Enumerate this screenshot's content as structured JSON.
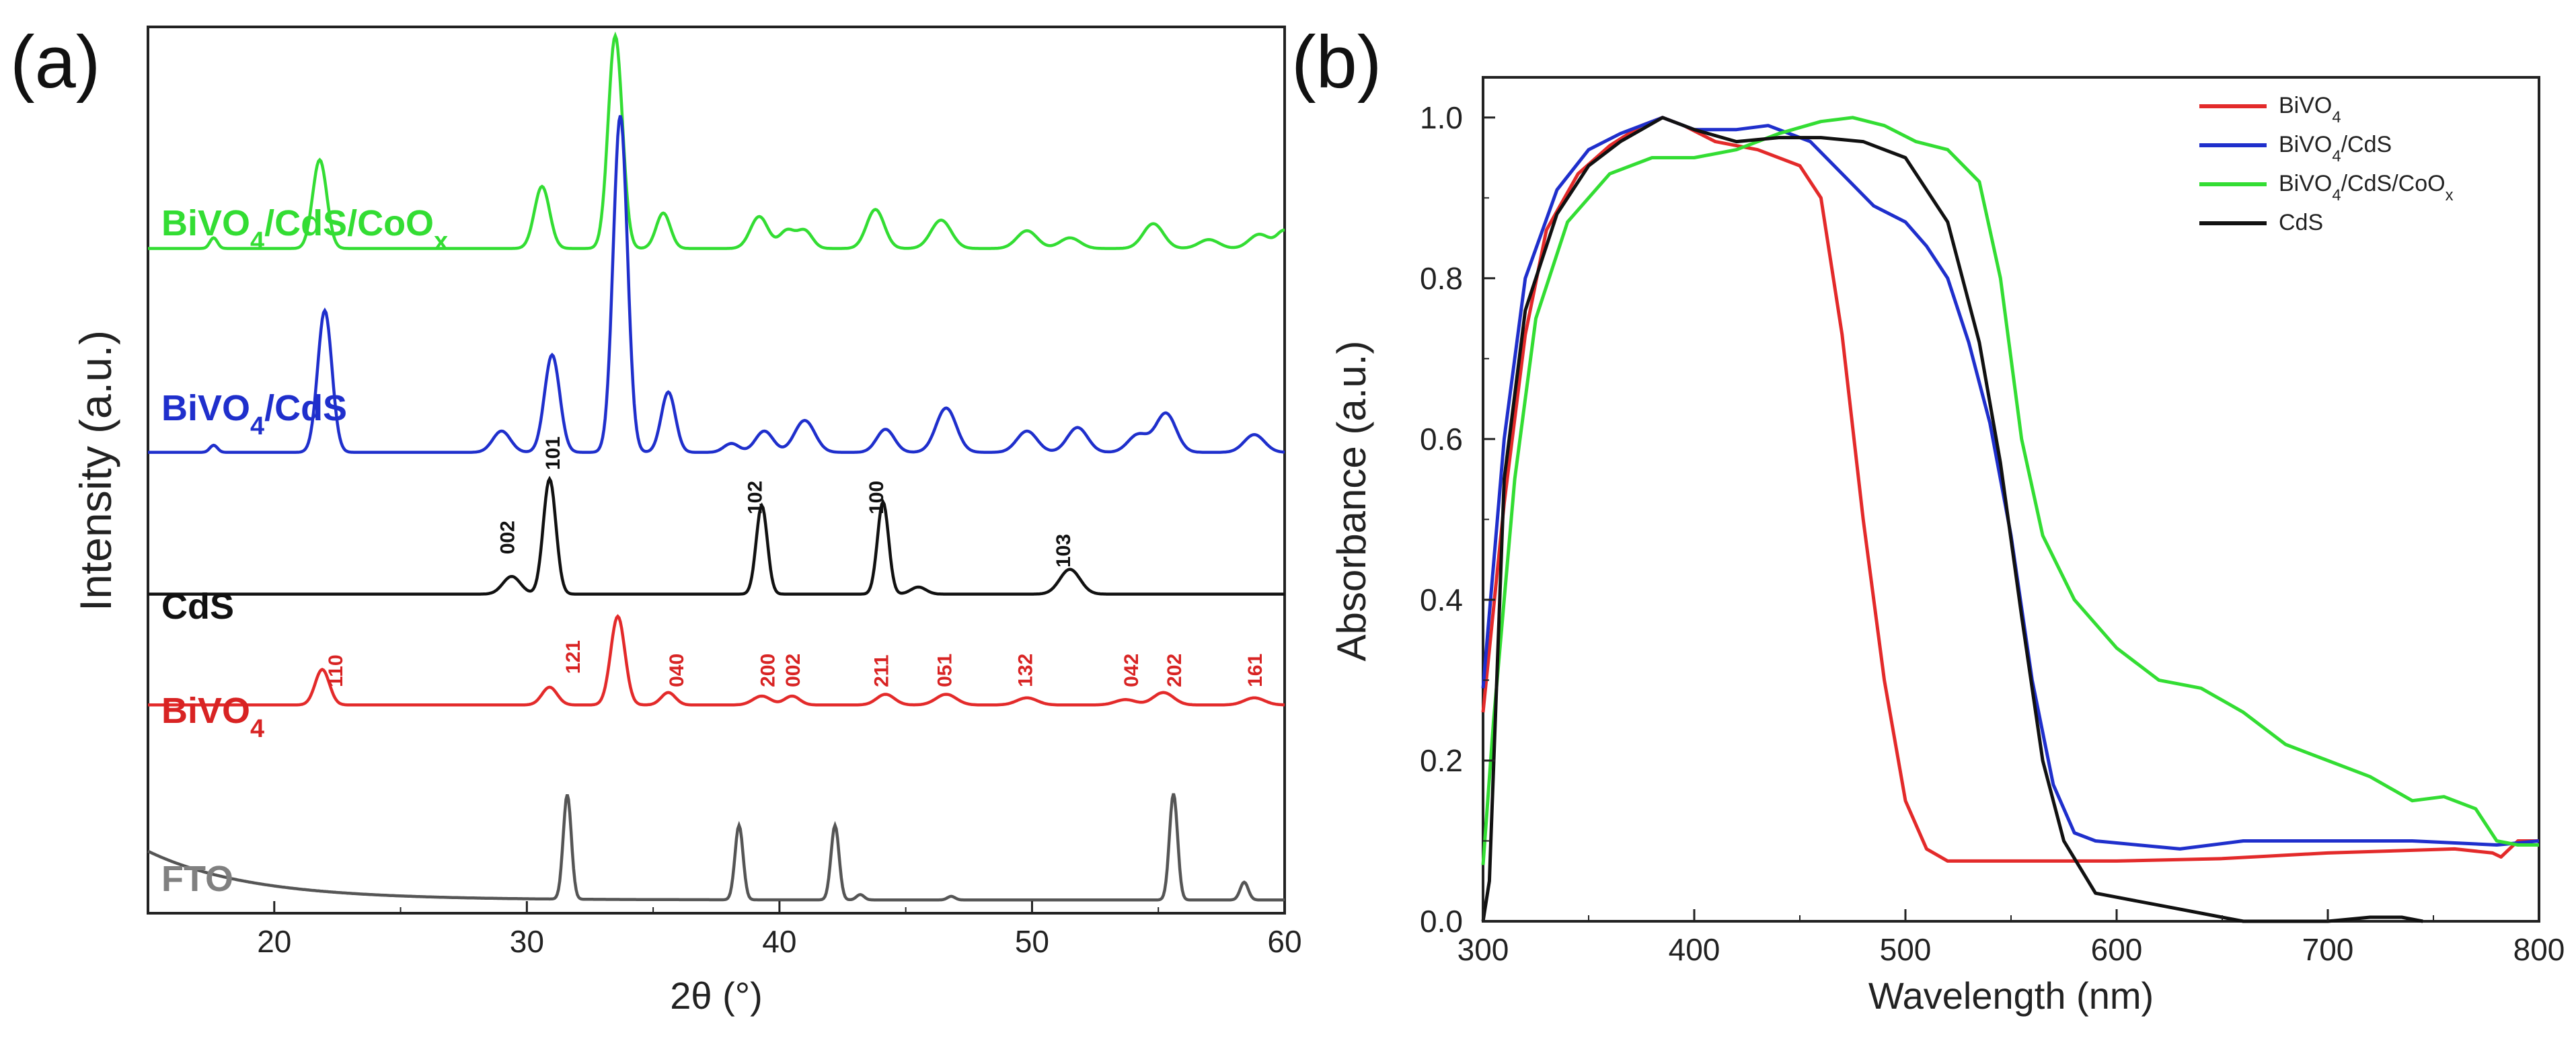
{
  "panel_a": {
    "label": "(a)",
    "label_text": "(a)",
    "xlabel": "2θ (°)",
    "ylabel": "Intensity (a.u.)"
  },
  "panel_b": {
    "label": "(b)",
    "xlabel": "Wavelength (nm)",
    "ylabel": "Absorbance (a.u.)"
  },
  "colors": {
    "green": "#33dd33",
    "blue": "#1f2fcc",
    "black": "#111111",
    "red": "#e32a2a",
    "gray": "#555555",
    "red_label": "#d82323"
  },
  "chart_data": [
    {
      "type": "line",
      "title": "(a)",
      "xlabel": "2θ (°)",
      "ylabel": "Intensity (a.u.)",
      "xlim": [
        15,
        60
      ],
      "xticks": [
        20,
        30,
        40,
        50,
        60
      ],
      "stacked": true,
      "series": [
        {
          "name": "BiVO4/CdS/CoOx",
          "label_main": "BiVO",
          "label_sub": "4",
          "label_mid": "/CdS/CoO",
          "label_sub2": "x",
          "color": "#33dd33",
          "baseline_level": 0.75,
          "peaks": [
            [
              17.6,
              0.06,
              0.15
            ],
            [
              21.8,
              0.5,
              0.28
            ],
            [
              30.6,
              0.35,
              0.3
            ],
            [
              33.5,
              1.2,
              0.28
            ],
            [
              35.4,
              0.2,
              0.28
            ],
            [
              39.2,
              0.18,
              0.35
            ],
            [
              40.3,
              0.1,
              0.3
            ],
            [
              41.0,
              0.1,
              0.3
            ],
            [
              43.8,
              0.22,
              0.35
            ],
            [
              46.4,
              0.16,
              0.4
            ],
            [
              49.8,
              0.1,
              0.4
            ],
            [
              51.5,
              0.06,
              0.4
            ],
            [
              54.8,
              0.14,
              0.4
            ],
            [
              57.0,
              0.05,
              0.4
            ],
            [
              59.0,
              0.08,
              0.4
            ],
            [
              60.0,
              0.1,
              0.3
            ]
          ]
        },
        {
          "name": "BiVO4/CdS",
          "label_main": "BiVO",
          "label_sub": "4",
          "label_mid": "/CdS",
          "label_sub2": "",
          "color": "#1f2fcc",
          "baseline_level": 0.52,
          "peaks": [
            [
              17.6,
              0.04,
              0.15
            ],
            [
              22.0,
              0.8,
              0.28
            ],
            [
              29.0,
              0.12,
              0.35
            ],
            [
              31.0,
              0.55,
              0.3
            ],
            [
              33.7,
              1.9,
              0.28
            ],
            [
              35.6,
              0.34,
              0.28
            ],
            [
              38.1,
              0.05,
              0.3
            ],
            [
              39.4,
              0.12,
              0.35
            ],
            [
              41.0,
              0.18,
              0.4
            ],
            [
              44.2,
              0.13,
              0.35
            ],
            [
              46.6,
              0.25,
              0.4
            ],
            [
              49.8,
              0.12,
              0.4
            ],
            [
              51.8,
              0.14,
              0.4
            ],
            [
              54.2,
              0.1,
              0.4
            ],
            [
              55.3,
              0.22,
              0.4
            ],
            [
              58.8,
              0.1,
              0.4
            ]
          ]
        },
        {
          "name": "CdS",
          "label_main": "CdS",
          "label_sub": "",
          "label_mid": "",
          "label_sub2": "",
          "color": "#111111",
          "baseline_level": 0.36,
          "peaks": [
            [
              29.4,
              0.1,
              0.35
            ],
            [
              30.9,
              0.65,
              0.25
            ],
            [
              39.3,
              0.5,
              0.22
            ],
            [
              44.1,
              0.52,
              0.22
            ],
            [
              45.5,
              0.04,
              0.3
            ],
            [
              51.5,
              0.14,
              0.4
            ]
          ]
        },
        {
          "name": "BiVO4",
          "label_main": "BiVO",
          "label_sub": "4",
          "label_mid": "",
          "label_sub2": "",
          "color": "#e32a2a",
          "baseline_level": 0.235,
          "peaks": [
            [
              21.9,
              0.2,
              0.28
            ],
            [
              30.9,
              0.1,
              0.3
            ],
            [
              33.6,
              0.5,
              0.28
            ],
            [
              35.6,
              0.07,
              0.28
            ],
            [
              39.3,
              0.05,
              0.35
            ],
            [
              40.5,
              0.05,
              0.3
            ],
            [
              44.2,
              0.06,
              0.35
            ],
            [
              46.6,
              0.06,
              0.4
            ],
            [
              49.8,
              0.04,
              0.4
            ],
            [
              53.7,
              0.03,
              0.4
            ],
            [
              55.2,
              0.07,
              0.4
            ],
            [
              58.8,
              0.04,
              0.4
            ]
          ]
        },
        {
          "name": "FTO",
          "label_main": "FTO",
          "label_sub": "",
          "label_mid": "",
          "label_sub2": "",
          "color": "#555555",
          "baseline_level": 0.015,
          "peaks": [
            [
              31.6,
              0.59,
              0.16
            ],
            [
              38.4,
              0.42,
              0.16
            ],
            [
              42.2,
              0.42,
              0.16
            ],
            [
              43.2,
              0.03,
              0.15
            ],
            [
              46.8,
              0.02,
              0.15
            ],
            [
              55.6,
              0.6,
              0.16
            ],
            [
              58.4,
              0.1,
              0.16
            ]
          ]
        }
      ],
      "peak_labels_black": [
        {
          "text": "002",
          "x": 29.5,
          "y": 0.405
        },
        {
          "text": "101",
          "x": 31.3,
          "y": 0.5
        },
        {
          "text": "102",
          "x": 39.3,
          "y": 0.45
        },
        {
          "text": "100",
          "x": 44.1,
          "y": 0.45
        },
        {
          "text": "103",
          "x": 51.5,
          "y": 0.39
        }
      ],
      "peak_labels_red": [
        {
          "text": "110",
          "x": 22.7,
          "y": 0.255
        },
        {
          "text": "121",
          "x": 32.1,
          "y": 0.27
        },
        {
          "text": "040",
          "x": 36.2,
          "y": 0.255
        },
        {
          "text": "200",
          "x": 39.8,
          "y": 0.255
        },
        {
          "text": "002",
          "x": 40.8,
          "y": 0.255
        },
        {
          "text": "211",
          "x": 44.3,
          "y": 0.255
        },
        {
          "text": "051",
          "x": 46.8,
          "y": 0.255
        },
        {
          "text": "132",
          "x": 50.0,
          "y": 0.255
        },
        {
          "text": "042",
          "x": 54.2,
          "y": 0.255
        },
        {
          "text": "202",
          "x": 55.9,
          "y": 0.255
        },
        {
          "text": "161",
          "x": 59.1,
          "y": 0.255
        }
      ]
    },
    {
      "type": "line",
      "title": "(b)",
      "xlabel": "Wavelength (nm)",
      "ylabel": "Absorbance (a.u.)",
      "xlim": [
        300,
        800
      ],
      "ylim": [
        0,
        1.05
      ],
      "xticks": [
        300,
        400,
        500,
        600,
        700,
        800
      ],
      "yticks": [
        0.0,
        0.2,
        0.4,
        0.6,
        0.8,
        1.0
      ],
      "ytick_labels": [
        "0.0",
        "0.2",
        "0.4",
        "0.6",
        "0.8",
        "1.0"
      ],
      "legend_position": "top-right",
      "series": [
        {
          "name": "BiVO4",
          "legend_main": "BiVO",
          "legend_sub": "4",
          "legend_rest": "",
          "legend_sub2": "",
          "color": "#e32a2a",
          "points": [
            [
              300,
              0.26
            ],
            [
              310,
              0.52
            ],
            [
              320,
              0.73
            ],
            [
              330,
              0.86
            ],
            [
              345,
              0.93
            ],
            [
              360,
              0.965
            ],
            [
              375,
              0.99
            ],
            [
              385,
              1.0
            ],
            [
              395,
              0.99
            ],
            [
              410,
              0.97
            ],
            [
              430,
              0.96
            ],
            [
              450,
              0.94
            ],
            [
              460,
              0.9
            ],
            [
              470,
              0.73
            ],
            [
              480,
              0.5
            ],
            [
              490,
              0.3
            ],
            [
              500,
              0.15
            ],
            [
              510,
              0.09
            ],
            [
              520,
              0.075
            ],
            [
              540,
              0.075
            ],
            [
              600,
              0.075
            ],
            [
              650,
              0.078
            ],
            [
              700,
              0.085
            ],
            [
              760,
              0.09
            ],
            [
              778,
              0.085
            ],
            [
              782,
              0.08
            ],
            [
              790,
              0.1
            ],
            [
              800,
              0.1
            ]
          ]
        },
        {
          "name": "BiVO4/CdS",
          "legend_main": "BiVO",
          "legend_sub": "4",
          "legend_rest": "/CdS",
          "legend_sub2": "",
          "color": "#1f2fcc",
          "points": [
            [
              300,
              0.29
            ],
            [
              310,
              0.6
            ],
            [
              320,
              0.8
            ],
            [
              335,
              0.91
            ],
            [
              350,
              0.96
            ],
            [
              365,
              0.98
            ],
            [
              385,
              1.0
            ],
            [
              400,
              0.985
            ],
            [
              420,
              0.985
            ],
            [
              435,
              0.99
            ],
            [
              455,
              0.97
            ],
            [
              470,
              0.93
            ],
            [
              485,
              0.89
            ],
            [
              500,
              0.87
            ],
            [
              510,
              0.84
            ],
            [
              520,
              0.8
            ],
            [
              530,
              0.72
            ],
            [
              540,
              0.62
            ],
            [
              550,
              0.48
            ],
            [
              560,
              0.3
            ],
            [
              570,
              0.17
            ],
            [
              580,
              0.11
            ],
            [
              590,
              0.1
            ],
            [
              610,
              0.095
            ],
            [
              630,
              0.09
            ],
            [
              660,
              0.1
            ],
            [
              700,
              0.1
            ],
            [
              740,
              0.1
            ],
            [
              780,
              0.095
            ],
            [
              800,
              0.1
            ]
          ]
        },
        {
          "name": "BiVO4/CdS/CoOx",
          "legend_main": "BiVO",
          "legend_sub": "4",
          "legend_rest": "/CdS/CoO",
          "legend_sub2": "x",
          "color": "#33dd33",
          "points": [
            [
              300,
              0.07
            ],
            [
              305,
              0.25
            ],
            [
              315,
              0.55
            ],
            [
              325,
              0.75
            ],
            [
              340,
              0.87
            ],
            [
              360,
              0.93
            ],
            [
              380,
              0.95
            ],
            [
              400,
              0.95
            ],
            [
              420,
              0.96
            ],
            [
              440,
              0.98
            ],
            [
              460,
              0.995
            ],
            [
              475,
              1.0
            ],
            [
              490,
              0.99
            ],
            [
              505,
              0.97
            ],
            [
              520,
              0.96
            ],
            [
              535,
              0.92
            ],
            [
              545,
              0.8
            ],
            [
              555,
              0.6
            ],
            [
              565,
              0.48
            ],
            [
              580,
              0.4
            ],
            [
              600,
              0.34
            ],
            [
              620,
              0.3
            ],
            [
              640,
              0.29
            ],
            [
              660,
              0.26
            ],
            [
              680,
              0.22
            ],
            [
              700,
              0.2
            ],
            [
              720,
              0.18
            ],
            [
              740,
              0.15
            ],
            [
              755,
              0.155
            ],
            [
              770,
              0.14
            ],
            [
              780,
              0.1
            ],
            [
              790,
              0.095
            ],
            [
              800,
              0.095
            ]
          ]
        },
        {
          "name": "CdS",
          "legend_main": "CdS",
          "legend_sub": "",
          "legend_rest": "",
          "legend_sub2": "",
          "color": "#111111",
          "points": [
            [
              300,
              0.0
            ],
            [
              303,
              0.05
            ],
            [
              310,
              0.55
            ],
            [
              320,
              0.76
            ],
            [
              335,
              0.88
            ],
            [
              350,
              0.94
            ],
            [
              365,
              0.97
            ],
            [
              385,
              1.0
            ],
            [
              400,
              0.985
            ],
            [
              420,
              0.97
            ],
            [
              440,
              0.975
            ],
            [
              460,
              0.975
            ],
            [
              480,
              0.97
            ],
            [
              500,
              0.95
            ],
            [
              520,
              0.87
            ],
            [
              535,
              0.72
            ],
            [
              545,
              0.57
            ],
            [
              555,
              0.38
            ],
            [
              565,
              0.2
            ],
            [
              575,
              0.1
            ],
            [
              590,
              0.035
            ],
            [
              620,
              0.02
            ],
            [
              640,
              0.01
            ],
            [
              660,
              0.0
            ],
            [
              700,
              0.0
            ],
            [
              720,
              0.005
            ],
            [
              735,
              0.005
            ],
            [
              745,
              0.0
            ]
          ]
        }
      ]
    }
  ]
}
